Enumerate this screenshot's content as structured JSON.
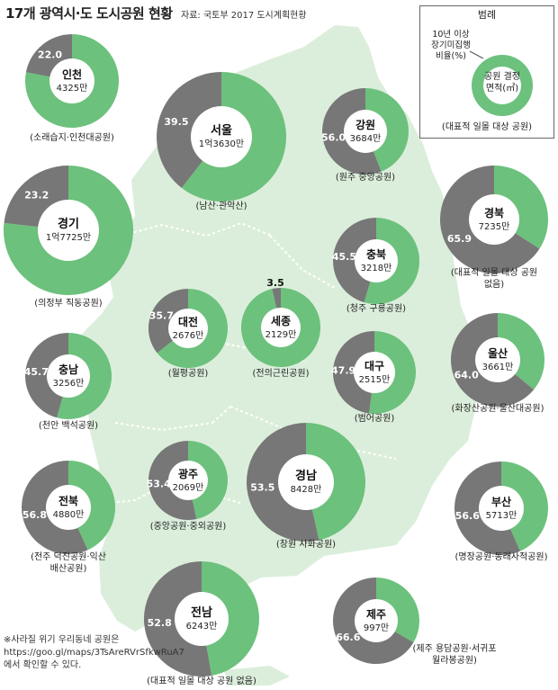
{
  "header": {
    "title": "17개 광역시·도 도시공원 현황",
    "source": "자료: 국토부 2017 도시계획현황"
  },
  "legend": {
    "title": "범례",
    "note": "10년 이상 장기미집행 비율(%)",
    "sample_label": "공원 결정 면적(㎡)",
    "caption": "(대표적 일몰 대상 공원)"
  },
  "footnote": "※사라질 위기 우리동네 공원은 https://goo.gl/maps/3TsAreRVrSfkwRuA7에서 확인할 수 있다.",
  "colors": {
    "green": "#6cc17d",
    "gray": "#777777",
    "map": "#dbeedb"
  },
  "chart_data": {
    "type": "pie",
    "subtype": "donut",
    "series_names": {
      "gray": "10년 이상 장기미집행 비율(%)",
      "center": "공원 결정 면적(㎡)"
    },
    "regions": [
      {
        "name": "인천",
        "area": "4325만",
        "unexecuted_pct": 22.0,
        "label": "22.0",
        "park": "(소래습지·인천대공원)"
      },
      {
        "name": "서울",
        "area": "1억3630만",
        "unexecuted_pct": 39.5,
        "label": "39.5",
        "park": "(남산·관악산)"
      },
      {
        "name": "강원",
        "area": "3684만",
        "unexecuted_pct": 56.0,
        "label": "56.0",
        "park": "(원주 중앙공원)"
      },
      {
        "name": "경기",
        "area": "1억7725만",
        "unexecuted_pct": 23.2,
        "label": "23.2",
        "park": "(의정부 직동공원)"
      },
      {
        "name": "경북",
        "area": "7235만",
        "unexecuted_pct": 65.9,
        "label": "65.9",
        "park": "(대표적 일몰 대상 공원 없음)"
      },
      {
        "name": "충북",
        "area": "3218만",
        "unexecuted_pct": 45.5,
        "label": "45.5",
        "park": "(청주 구룡공원)"
      },
      {
        "name": "대전",
        "area": "2676만",
        "unexecuted_pct": 35.7,
        "label": "35.7",
        "park": "(월평공원)"
      },
      {
        "name": "세종",
        "area": "2129만",
        "unexecuted_pct": 3.5,
        "label": "3.5",
        "park": "(전의근린공원)"
      },
      {
        "name": "충남",
        "area": "3256만",
        "unexecuted_pct": 45.7,
        "label": "45.7",
        "park": "(천안 백석공원)"
      },
      {
        "name": "대구",
        "area": "2515만",
        "unexecuted_pct": 47.9,
        "label": "47.9",
        "park": "(범어공원)"
      },
      {
        "name": "울산",
        "area": "3661만",
        "unexecuted_pct": 64.0,
        "label": "64.0",
        "park": "(화장산공원·울산대공원)"
      },
      {
        "name": "전북",
        "area": "4880만",
        "unexecuted_pct": 56.8,
        "label": "56.8",
        "park": "(전주 덕진공원·익산 배산공원)"
      },
      {
        "name": "광주",
        "area": "2069만",
        "unexecuted_pct": 53.4,
        "label": "53.4",
        "park": "(중앙공원·중외공원)"
      },
      {
        "name": "경남",
        "area": "8428만",
        "unexecuted_pct": 53.5,
        "label": "53.5",
        "park": "(창원 사화공원)"
      },
      {
        "name": "부산",
        "area": "5713만",
        "unexecuted_pct": 56.6,
        "label": "56.6",
        "park": "(명장공원·동래사적공원)"
      },
      {
        "name": "전남",
        "area": "6243만",
        "unexecuted_pct": 52.8,
        "label": "52.8",
        "park": "(대표적 일몰 대상 공원 없음)"
      },
      {
        "name": "제주",
        "area": "997만",
        "unexecuted_pct": 66.6,
        "label": "66.6",
        "park": "(제주 용담공원·서귀포 월라봉공원)"
      }
    ]
  }
}
